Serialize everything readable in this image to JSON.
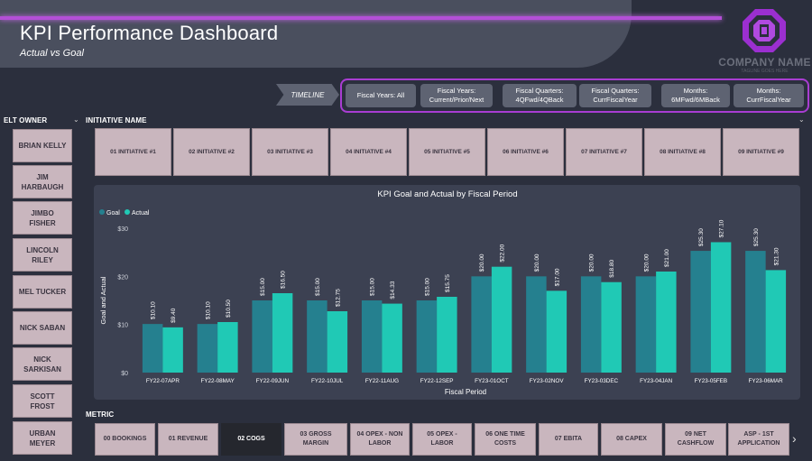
{
  "header": {
    "title": "KPI Performance Dashboard",
    "subtitle": "Actual vs Goal",
    "company_name": "COMPANY NAME",
    "company_tagline": "TAGLINE GOES HERE"
  },
  "colors": {
    "accent": "#b34fd6",
    "goal": "#25808f",
    "actual": "#20c9b5",
    "button_bg": "#c9b6be",
    "selected_bg": "#25272e"
  },
  "timeline": {
    "label": "TIMELINE",
    "buttons": [
      {
        "line1": "Fiscal Years: All",
        "line2": ""
      },
      {
        "line1": "Fiscal Years:",
        "line2": "Current/Prior/Next"
      },
      {
        "line1": "Fiscal Quarters:",
        "line2": "4QFwd/4QBack"
      },
      {
        "line1": "Fiscal Quarters:",
        "line2": "CurrFiscalYear"
      },
      {
        "line1": "Months:",
        "line2": "6MFwd/6MBack"
      },
      {
        "line1": "Months:",
        "line2": "CurrFiscalYear"
      }
    ]
  },
  "elt_owner": {
    "header": "ELT OWNER",
    "items": [
      {
        "line1": "BRIAN KELLY",
        "line2": ""
      },
      {
        "line1": "JIM",
        "line2": "HARBAUGH"
      },
      {
        "line1": "JIMBO",
        "line2": "FISHER"
      },
      {
        "line1": "LINCOLN",
        "line2": "RILEY"
      },
      {
        "line1": "MEL TUCKER",
        "line2": ""
      },
      {
        "line1": "NICK SABAN",
        "line2": ""
      },
      {
        "line1": "NICK",
        "line2": "SARKISAN"
      },
      {
        "line1": "SCOTT",
        "line2": "FROST"
      },
      {
        "line1": "URBAN",
        "line2": "MEYER"
      }
    ]
  },
  "initiatives": {
    "header": "INITIATIVE NAME",
    "items": [
      "01 INITIATIVE #1",
      "02 INITIATIVE #2",
      "03 INITIATIVE #3",
      "04 INITIATIVE #4",
      "05 INITIATIVE #5",
      "06 INITIATIVE #6",
      "07 INITIATIVE #7",
      "08 INITIATIVE #8",
      "09 INITIATIVE #9"
    ]
  },
  "metric": {
    "header": "METRIC",
    "selected_index": 2,
    "items": [
      {
        "line1": "00 BOOKINGS",
        "line2": ""
      },
      {
        "line1": "01 REVENUE",
        "line2": ""
      },
      {
        "line1": "02 COGS",
        "line2": ""
      },
      {
        "line1": "03 GROSS",
        "line2": "MARGIN"
      },
      {
        "line1": "04 OPEX - NON",
        "line2": "LABOR"
      },
      {
        "line1": "05 OPEX -",
        "line2": "LABOR"
      },
      {
        "line1": "06 ONE TIME",
        "line2": "COSTS"
      },
      {
        "line1": "07 EBITA",
        "line2": ""
      },
      {
        "line1": "08 CAPEX",
        "line2": ""
      },
      {
        "line1": "09 NET",
        "line2": "CASHFLOW"
      },
      {
        "line1": "ASP - 1ST",
        "line2": "APPLICATION"
      }
    ],
    "next_glyph": "›"
  },
  "chart_data": {
    "type": "bar",
    "title": "KPI Goal and Actual by Fiscal Period",
    "xlabel": "Fiscal Period",
    "ylabel": "Goal and Actual",
    "legend_position": "top-left",
    "ylim": [
      0,
      30
    ],
    "yticks": [
      0,
      10,
      20,
      30
    ],
    "ytick_labels": [
      "$0",
      "$10",
      "$20",
      "$30"
    ],
    "grid": false,
    "categories": [
      "FY22-07APR",
      "FY22-08MAY",
      "FY22-09JUN",
      "FY22-10JUL",
      "FY22-11AUG",
      "FY22-12SEP",
      "FY23-01OCT",
      "FY23-02NOV",
      "FY23-03DEC",
      "FY23-04JAN",
      "FY23-05FEB",
      "FY23-06MAR"
    ],
    "series": [
      {
        "name": "Goal",
        "values": [
          10.1,
          10.1,
          15.0,
          15.0,
          15.0,
          15.0,
          20.0,
          20.0,
          20.0,
          20.0,
          25.3,
          25.3
        ],
        "labels": [
          "$10.10",
          "$10.10",
          "$15.00",
          "$15.00",
          "$15.00",
          "$15.00",
          "$20.00",
          "$20.00",
          "$20.00",
          "$20.00",
          "$25.30",
          "$25.30"
        ]
      },
      {
        "name": "Actual",
        "values": [
          9.4,
          10.5,
          16.5,
          12.75,
          14.33,
          15.75,
          22.0,
          17.0,
          18.8,
          21.0,
          27.1,
          21.3
        ],
        "labels": [
          "$9.40",
          "$10.50",
          "$16.50",
          "$12.75",
          "$14.33",
          "$15.75",
          "$22.00",
          "$17.00",
          "$18.80",
          "$21.00",
          "$27.10",
          "$21.30"
        ]
      }
    ]
  }
}
